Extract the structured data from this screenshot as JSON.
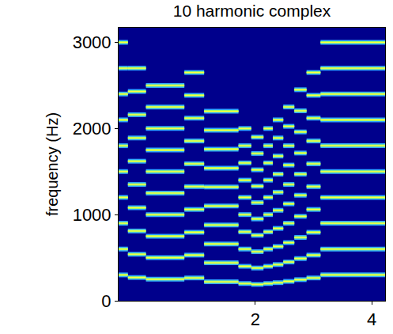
{
  "chart_data": {
    "type": "line",
    "title": "10 harmonic complex",
    "y_label": "frequency (Hz)",
    "xlim": [
      -0.35,
      4.23
    ],
    "xticks": [
      2,
      4
    ],
    "ylim": [
      0,
      3170
    ],
    "yticks": [
      0,
      1000,
      2000,
      3000
    ],
    "grid": false,
    "segments": [
      {
        "start": -0.35,
        "end": -0.19,
        "frequencies": [
          300,
          600,
          900,
          1200,
          1500,
          1800,
          2100,
          2400,
          2700,
          3000
        ]
      },
      {
        "start": -0.19,
        "end": 0.12,
        "frequencies": [
          270,
          540,
          810,
          1080,
          1350,
          1620,
          1890,
          2160,
          2430,
          2700
        ]
      },
      {
        "start": 0.12,
        "end": 0.78,
        "frequencies": [
          250,
          500,
          750,
          1000,
          1250,
          1500,
          1750,
          2000,
          2250,
          2500
        ]
      },
      {
        "start": 0.78,
        "end": 1.12,
        "frequencies": [
          265,
          530,
          795,
          1060,
          1325,
          1590,
          1855,
          2120,
          2385,
          2650
        ]
      },
      {
        "start": 1.12,
        "end": 1.71,
        "frequencies": [
          220,
          440,
          660,
          880,
          1100,
          1320,
          1540,
          1760,
          1980,
          2200
        ]
      },
      {
        "start": 1.71,
        "end": 1.93,
        "frequencies": [
          200,
          400,
          600,
          800,
          1000,
          1200,
          1400,
          1600,
          1800,
          2000
        ]
      },
      {
        "start": 1.93,
        "end": 2.14,
        "frequencies": [
          190,
          380,
          570,
          760,
          950,
          1140,
          1330,
          1520,
          1710,
          1900
        ]
      },
      {
        "start": 2.14,
        "end": 2.3,
        "frequencies": [
          200,
          400,
          600,
          800,
          1000,
          1200,
          1400,
          1600,
          1800,
          2000
        ]
      },
      {
        "start": 2.3,
        "end": 2.48,
        "frequencies": [
          210,
          420,
          630,
          840,
          1050,
          1260,
          1470,
          1680,
          1890,
          2100
        ]
      },
      {
        "start": 2.48,
        "end": 2.67,
        "frequencies": [
          225,
          450,
          675,
          900,
          1125,
          1350,
          1575,
          1800,
          2025,
          2250
        ]
      },
      {
        "start": 2.67,
        "end": 2.88,
        "frequencies": [
          245,
          490,
          735,
          980,
          1225,
          1470,
          1715,
          1960,
          2205,
          2450
        ]
      },
      {
        "start": 2.88,
        "end": 3.12,
        "frequencies": [
          265,
          530,
          795,
          1060,
          1325,
          1590,
          1855,
          2120,
          2385,
          2650
        ]
      },
      {
        "start": 3.12,
        "end": 4.23,
        "frequencies": [
          300,
          600,
          900,
          1200,
          1500,
          1800,
          2100,
          2400,
          2700,
          3000
        ]
      }
    ]
  }
}
